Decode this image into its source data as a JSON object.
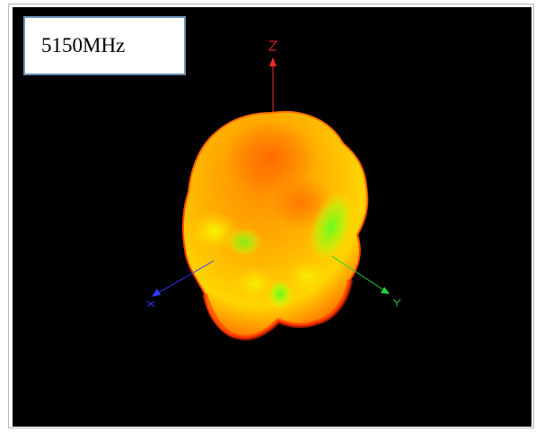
{
  "frequency_label": "5150MHz",
  "axes": {
    "z": {
      "label": "Z",
      "color": "#ff2a2a"
    },
    "x": {
      "label": "X",
      "color": "#2a3cff"
    },
    "y": {
      "label": "Y",
      "color": "#1fd43a"
    }
  },
  "pattern_colors": {
    "high": "#ff6a00",
    "mid": "#ffc400",
    "low": "#7dff1e",
    "edge": "#ff2a00"
  },
  "background_color": "#000000"
}
